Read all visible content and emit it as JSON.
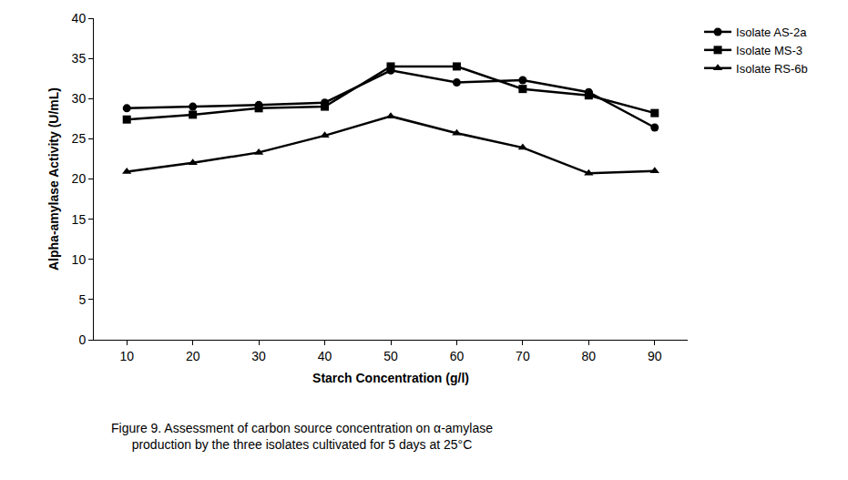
{
  "chart_data": {
    "type": "line",
    "caption": [
      "Figure 9. Assessment of carbon source concentration on α-amylase",
      "production by the three isolates cultivated for 5 days at 25°C"
    ],
    "x_label": "Starch Concentration (g/l)",
    "y_label": "Alpha-amylase Activity (U/mL)",
    "x": [
      10,
      20,
      30,
      40,
      50,
      60,
      70,
      80,
      90
    ],
    "series": [
      {
        "name": "Isolate AS-2a",
        "color": "#000000",
        "marker": "circle",
        "line_style": "solid",
        "values": [
          28.8,
          29.0,
          29.2,
          29.5,
          33.5,
          32.0,
          32.3,
          30.8,
          26.4
        ]
      },
      {
        "name": "Isolate MS-3",
        "color": "#000000",
        "marker": "square",
        "line_style": "solid",
        "values": [
          27.4,
          28.0,
          28.8,
          29.0,
          34.0,
          34.0,
          31.2,
          30.4,
          28.2
        ]
      },
      {
        "name": "Isolate RS-6b",
        "color": "#000000",
        "marker": "triangle-up",
        "line_style": "solid",
        "values": [
          20.9,
          22.0,
          23.3,
          25.4,
          27.8,
          25.7,
          23.9,
          20.7,
          21.0
        ]
      }
    ],
    "xlim": [
      5,
      95
    ],
    "xticks": [
      10,
      20,
      30,
      40,
      50,
      60,
      70,
      80,
      90
    ],
    "ylim": [
      0,
      40
    ],
    "yticks": [
      0,
      5,
      10,
      15,
      20,
      25,
      30,
      35,
      40
    ],
    "grid": false,
    "legend": "right"
  }
}
